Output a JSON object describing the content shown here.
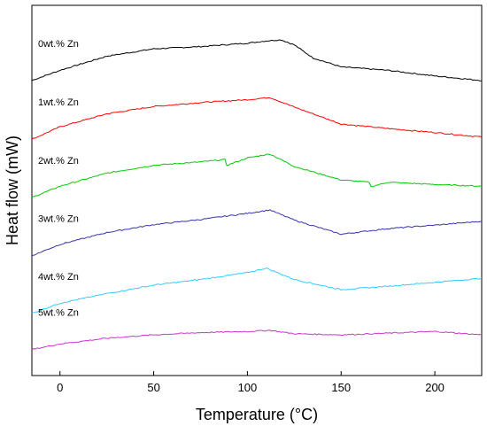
{
  "chart_data": {
    "type": "line",
    "title": "",
    "xlabel": "Temperature (°C)",
    "ylabel": "Heat flow (mW)",
    "xlim": [
      -15,
      225
    ],
    "xticks": [
      0,
      50,
      100,
      150,
      200
    ],
    "y_tick_labels_shown": false,
    "grid": false,
    "legend": "inline labels left of curves",
    "series": [
      {
        "name": "0wt.% Zn",
        "color": "#000000",
        "x": [
          -15,
          0,
          25,
          50,
          75,
          100,
          110,
          118,
          125,
          135,
          150,
          175,
          200,
          225
        ],
        "y": [
          6.42,
          6.6,
          6.85,
          6.98,
          7.02,
          7.08,
          7.12,
          7.14,
          7.05,
          6.82,
          6.66,
          6.6,
          6.5,
          6.42
        ]
      },
      {
        "name": "1wt.% Zn",
        "color": "#ff0000",
        "x": [
          -15,
          0,
          25,
          50,
          75,
          100,
          112,
          125,
          150,
          175,
          200,
          225
        ],
        "y": [
          5.38,
          5.6,
          5.83,
          5.96,
          6.03,
          6.08,
          6.12,
          5.95,
          5.65,
          5.57,
          5.5,
          5.42
        ]
      },
      {
        "name": "2wt.% Zn",
        "color": "#00cc00",
        "x": [
          -15,
          0,
          25,
          50,
          75,
          88,
          89,
          100,
          112,
          125,
          150,
          165,
          166,
          175,
          200,
          225
        ],
        "y": [
          4.35,
          4.55,
          4.78,
          4.92,
          4.98,
          5.02,
          4.92,
          5.05,
          5.12,
          4.9,
          4.66,
          4.62,
          4.54,
          4.62,
          4.58,
          4.55
        ]
      },
      {
        "name": "3wt.% Zn",
        "color": "#3333aa",
        "x": [
          -15,
          0,
          25,
          50,
          75,
          100,
          112,
          125,
          150,
          175,
          200,
          225
        ],
        "y": [
          3.32,
          3.52,
          3.73,
          3.87,
          3.96,
          4.07,
          4.13,
          3.95,
          3.7,
          3.8,
          3.86,
          3.93
        ]
      },
      {
        "name": "4wt.% Zn",
        "color": "#33ccff",
        "x": [
          -15,
          0,
          25,
          50,
          75,
          100,
          110,
          125,
          150,
          175,
          200,
          225
        ],
        "y": [
          2.3,
          2.48,
          2.65,
          2.8,
          2.9,
          3.02,
          3.1,
          2.9,
          2.72,
          2.78,
          2.85,
          2.92
        ]
      },
      {
        "name": "5wt.% Zn",
        "color": "#cc33cc",
        "x": [
          -15,
          0,
          25,
          50,
          75,
          100,
          112,
          125,
          150,
          175,
          200,
          225
        ],
        "y": [
          1.66,
          1.76,
          1.86,
          1.92,
          1.96,
          1.98,
          2.0,
          1.94,
          1.92,
          1.95,
          1.98,
          1.92
        ]
      }
    ]
  }
}
